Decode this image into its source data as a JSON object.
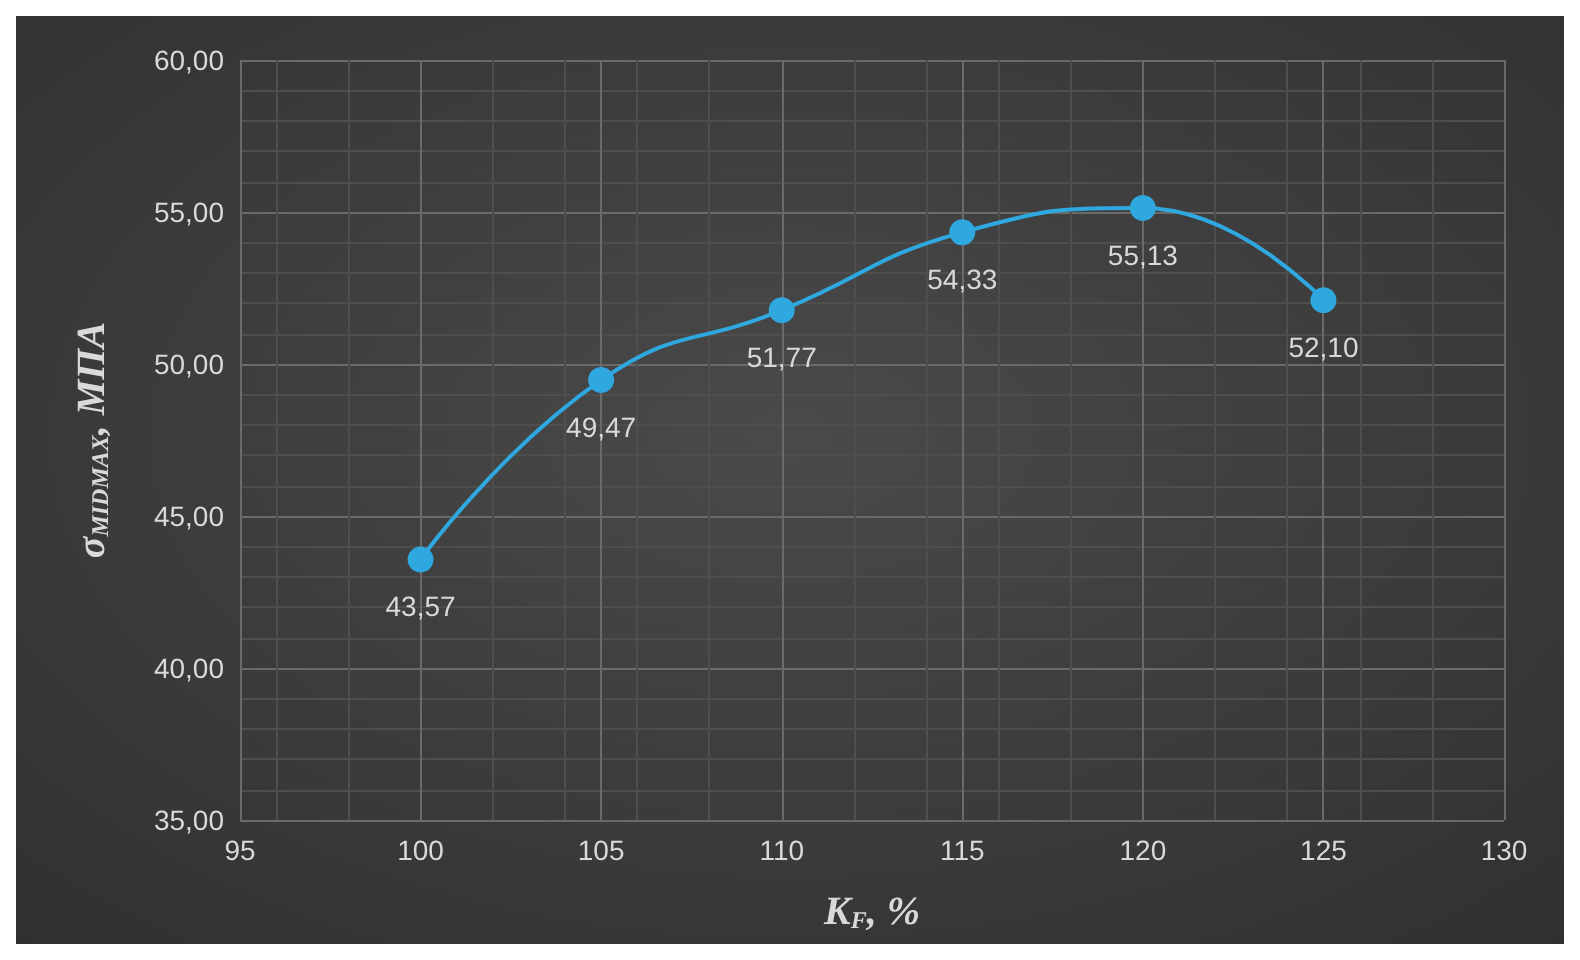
{
  "chart_data": {
    "type": "line",
    "xlabel": "K$_{F}$, %",
    "ylabel": "σ$_{MIDMAX}$, МПА",
    "x": [
      100,
      105,
      110,
      115,
      120,
      125
    ],
    "series": [
      {
        "color": "#2fa8e0",
        "values": [
          43.57,
          49.47,
          51.77,
          54.33,
          55.13,
          52.1
        ],
        "value_labels": [
          "43,57",
          "49,47",
          "51,77",
          "54,33",
          "55,13",
          "52,10"
        ]
      }
    ],
    "xlim": [
      95,
      130
    ],
    "xticks": [
      95,
      100,
      105,
      110,
      115,
      120,
      125,
      130
    ],
    "ylim": [
      35,
      60
    ],
    "yticks": [
      {
        "value": 35,
        "label": "35,00"
      },
      {
        "value": 40,
        "label": "40,00"
      },
      {
        "value": 45,
        "label": "45,00"
      },
      {
        "value": 50,
        "label": "50,00"
      },
      {
        "value": 55,
        "label": "55,00"
      },
      {
        "value": 60,
        "label": "60,00"
      }
    ],
    "grid": true,
    "marker": "circle",
    "line_style": "solid"
  }
}
